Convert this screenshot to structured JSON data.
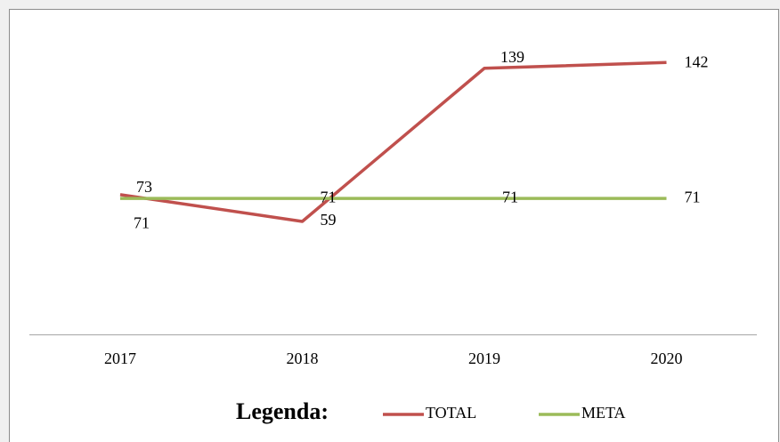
{
  "chart_data": {
    "type": "line",
    "categories": [
      "2017",
      "2018",
      "2019",
      "2020"
    ],
    "series": [
      {
        "name": "TOTAL",
        "color": "#c0504d",
        "values": [
          73,
          59,
          139,
          142
        ]
      },
      {
        "name": "META",
        "color": "#9bbb59",
        "values": [
          71,
          71,
          71,
          71
        ]
      }
    ],
    "ylim": [
      0,
      170
    ],
    "legend_title": "Legenda:",
    "legend": "bottom"
  }
}
